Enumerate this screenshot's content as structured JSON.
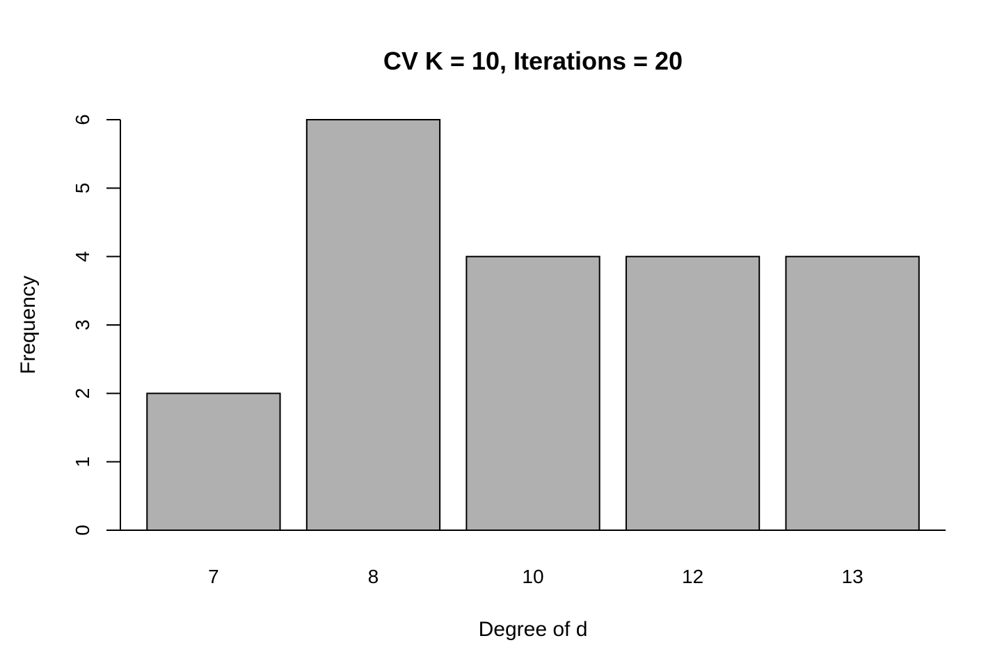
{
  "chart_data": {
    "type": "bar",
    "title": "CV K = 10, Iterations = 20",
    "xlabel": "Degree of d",
    "ylabel": "Frequency",
    "categories": [
      "7",
      "8",
      "10",
      "12",
      "13"
    ],
    "values": [
      2,
      6,
      4,
      4,
      4
    ],
    "ylim": [
      0,
      6
    ],
    "yticks": [
      "0",
      "1",
      "2",
      "3",
      "4",
      "5",
      "6"
    ],
    "grid": false,
    "legend": "none",
    "bar_color": "#b0b0b0",
    "edge_color": "#000000"
  }
}
